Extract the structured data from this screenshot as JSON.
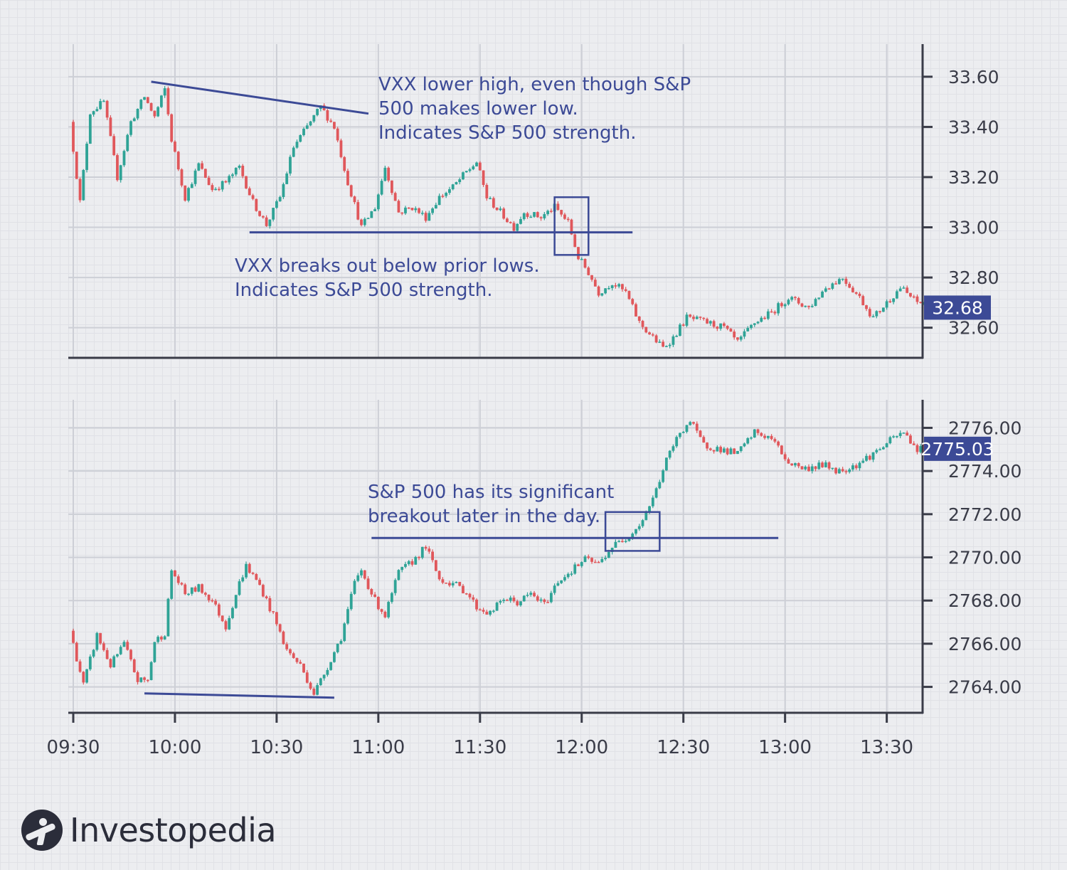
{
  "chart_data": [
    {
      "type": "candlestick",
      "title": "",
      "ylabel": "",
      "ylim": [
        32.48,
        33.73
      ],
      "yticks": [
        "33.60",
        "33.40",
        "33.20",
        "33.00",
        "32.80",
        "32.60"
      ],
      "last_price_label": "32.68",
      "last_price": 32.68,
      "anchors": [
        [
          "09:30",
          33.42
        ],
        [
          "09:33",
          33.1
        ],
        [
          "09:36",
          33.46
        ],
        [
          "09:40",
          33.5
        ],
        [
          "09:44",
          33.2
        ],
        [
          "09:48",
          33.42
        ],
        [
          "09:52",
          33.52
        ],
        [
          "09:55",
          33.44
        ],
        [
          "09:58",
          33.55
        ],
        [
          "10:00",
          33.35
        ],
        [
          "10:04",
          33.12
        ],
        [
          "10:08",
          33.25
        ],
        [
          "10:12",
          33.15
        ],
        [
          "10:16",
          33.18
        ],
        [
          "10:20",
          33.24
        ],
        [
          "10:24",
          33.1
        ],
        [
          "10:28",
          33.01
        ],
        [
          "10:32",
          33.12
        ],
        [
          "10:36",
          33.32
        ],
        [
          "10:40",
          33.4
        ],
        [
          "10:44",
          33.48
        ],
        [
          "10:48",
          33.4
        ],
        [
          "10:52",
          33.18
        ],
        [
          "10:56",
          33.0
        ],
        [
          "11:00",
          33.08
        ],
        [
          "11:03",
          33.24
        ],
        [
          "11:07",
          33.06
        ],
        [
          "11:11",
          33.08
        ],
        [
          "11:15",
          33.04
        ],
        [
          "11:19",
          33.12
        ],
        [
          "11:23",
          33.16
        ],
        [
          "11:27",
          33.22
        ],
        [
          "11:30",
          33.26
        ],
        [
          "11:33",
          33.12
        ],
        [
          "11:37",
          33.06
        ],
        [
          "11:41",
          33.0
        ],
        [
          "11:44",
          33.06
        ],
        [
          "11:49",
          33.04
        ],
        [
          "11:53",
          33.08
        ],
        [
          "11:57",
          33.02
        ],
        [
          "12:00",
          32.88
        ],
        [
          "12:03",
          32.82
        ],
        [
          "12:06",
          32.74
        ],
        [
          "12:10",
          32.78
        ],
        [
          "12:14",
          32.74
        ],
        [
          "12:18",
          32.62
        ],
        [
          "12:22",
          32.56
        ],
        [
          "12:25",
          32.52
        ],
        [
          "12:28",
          32.56
        ],
        [
          "12:32",
          32.64
        ],
        [
          "12:38",
          32.62
        ],
        [
          "12:43",
          32.6
        ],
        [
          "12:47",
          32.54
        ],
        [
          "12:52",
          32.62
        ],
        [
          "12:57",
          32.66
        ],
        [
          "13:02",
          32.72
        ],
        [
          "13:08",
          32.68
        ],
        [
          "13:13",
          32.76
        ],
        [
          "13:18",
          32.8
        ],
        [
          "13:23",
          32.72
        ],
        [
          "13:27",
          32.64
        ],
        [
          "13:31",
          32.7
        ],
        [
          "13:35",
          32.76
        ],
        [
          "13:40",
          32.7
        ]
      ],
      "annotations": [
        {
          "lines": [
            "VXX lower high, even though S&P",
            "500 makes lower low.",
            "Indicates S&P 500 strength."
          ],
          "trendline": [
            [
              "09:53",
              33.58
            ],
            [
              "10:45",
              33.49
            ]
          ]
        },
        {
          "lines": [
            "VXX breaks out below prior lows.",
            "Indicates S&P 500 strength."
          ],
          "trendline": [
            [
              "10:22",
              32.98
            ],
            [
              "12:15",
              32.98
            ]
          ]
        }
      ],
      "highlight_box": {
        "x": [
          "11:52",
          "12:02"
        ],
        "y": [
          32.89,
          33.12
        ]
      }
    },
    {
      "type": "candlestick",
      "title": "",
      "ylabel": "",
      "ylim": [
        2762.8,
        2777.3
      ],
      "yticks": [
        "2776.00",
        "2774.00",
        "2772.00",
        "2770.00",
        "2768.00",
        "2766.00",
        "2764.00"
      ],
      "last_price_label": "2775.03",
      "last_price": 2775.03,
      "anchors": [
        [
          "09:30",
          2766.6
        ],
        [
          "09:34",
          2764.1
        ],
        [
          "09:38",
          2766.4
        ],
        [
          "09:42",
          2765.0
        ],
        [
          "09:46",
          2766.0
        ],
        [
          "09:50",
          2764.3
        ],
        [
          "09:53",
          2764.3
        ],
        [
          "09:55",
          2766.1
        ],
        [
          "09:58",
          2766.5
        ],
        [
          "10:00",
          2769.4
        ],
        [
          "10:04",
          2768.3
        ],
        [
          "10:08",
          2768.6
        ],
        [
          "10:12",
          2768.0
        ],
        [
          "10:16",
          2766.8
        ],
        [
          "10:20",
          2768.8
        ],
        [
          "10:22",
          2769.6
        ],
        [
          "10:26",
          2768.7
        ],
        [
          "10:30",
          2767.3
        ],
        [
          "10:34",
          2765.7
        ],
        [
          "10:38",
          2765.0
        ],
        [
          "10:42",
          2763.7
        ],
        [
          "10:45",
          2764.6
        ],
        [
          "10:50",
          2766.3
        ],
        [
          "10:54",
          2768.8
        ],
        [
          "10:56",
          2769.4
        ],
        [
          "11:00",
          2768.0
        ],
        [
          "11:03",
          2767.3
        ],
        [
          "11:07",
          2769.3
        ],
        [
          "11:11",
          2769.8
        ],
        [
          "11:15",
          2770.5
        ],
        [
          "11:19",
          2769.0
        ],
        [
          "11:23",
          2768.8
        ],
        [
          "11:27",
          2768.4
        ],
        [
          "11:30",
          2767.7
        ],
        [
          "11:34",
          2767.4
        ],
        [
          "11:38",
          2768.1
        ],
        [
          "11:42",
          2767.9
        ],
        [
          "11:46",
          2768.3
        ],
        [
          "11:50",
          2767.8
        ],
        [
          "11:54",
          2768.9
        ],
        [
          "11:58",
          2769.4
        ],
        [
          "12:02",
          2769.9
        ],
        [
          "12:06",
          2769.7
        ],
        [
          "12:10",
          2770.5
        ],
        [
          "12:14",
          2770.9
        ],
        [
          "12:18",
          2771.5
        ],
        [
          "12:22",
          2772.7
        ],
        [
          "12:26",
          2774.5
        ],
        [
          "12:30",
          2775.8
        ],
        [
          "12:33",
          2776.3
        ],
        [
          "12:37",
          2775.2
        ],
        [
          "12:42",
          2775.0
        ],
        [
          "12:47",
          2774.8
        ],
        [
          "12:52",
          2775.8
        ],
        [
          "12:57",
          2775.5
        ],
        [
          "13:02",
          2774.4
        ],
        [
          "13:07",
          2774.1
        ],
        [
          "13:12",
          2774.3
        ],
        [
          "13:17",
          2774.0
        ],
        [
          "13:22",
          2774.3
        ],
        [
          "13:27",
          2774.8
        ],
        [
          "13:32",
          2775.4
        ],
        [
          "13:36",
          2775.8
        ],
        [
          "13:40",
          2775.0
        ]
      ],
      "annotations": [
        {
          "lines": [
            "S&P 500 has its significant",
            "breakout later in the day."
          ],
          "trendline": [
            [
              "10:58",
              2770.9
            ],
            [
              "12:58",
              2770.9
            ]
          ]
        },
        {
          "lines": [],
          "trendline": [
            [
              "09:51",
              2763.7
            ],
            [
              "10:47",
              2763.5
            ]
          ]
        }
      ],
      "highlight_box": {
        "x": [
          "12:07",
          "12:23"
        ],
        "y": [
          2770.3,
          2772.1
        ]
      }
    }
  ],
  "x_axis": {
    "ticks": [
      "09:30",
      "10:00",
      "10:30",
      "11:00",
      "11:30",
      "12:00",
      "12:30",
      "13:00",
      "13:30"
    ],
    "range": [
      "09:30",
      "13:41"
    ]
  },
  "colors": {
    "up": "#2fa396",
    "down": "#e0575b",
    "annotation": "#3c4a96",
    "axis": "#3a3c48",
    "grid": "#cdcfd6",
    "label_bg": "#3c4a96",
    "text": "#3a3c48"
  },
  "logo": {
    "text": "Investopedia",
    "icon": "investopedia-logo-icon"
  }
}
